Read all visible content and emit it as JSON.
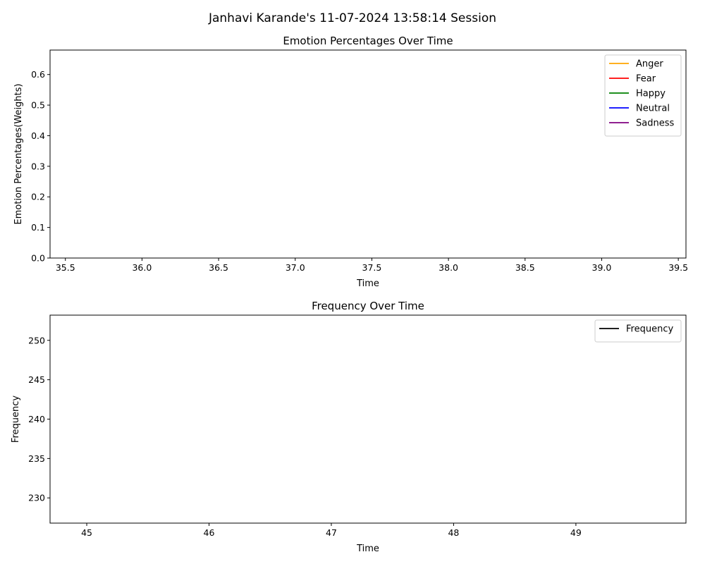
{
  "figure": {
    "suptitle": "Janhavi Karande's 11-07-2024 13:58:14 Session"
  },
  "chart_data": [
    {
      "type": "line",
      "title": "Emotion Percentages Over Time",
      "xlabel": "Time",
      "ylabel": "Emotion Percentages(Weights)",
      "xlim": [
        35.4,
        39.55
      ],
      "ylim": [
        0,
        0.68
      ],
      "xticks": [
        "35.5",
        "36.0",
        "36.5",
        "37.0",
        "37.5",
        "38.0",
        "38.5",
        "39.0",
        "39.5"
      ],
      "yticks": [
        "0.0",
        "0.1",
        "0.2",
        "0.3",
        "0.4",
        "0.5",
        "0.6"
      ],
      "legend_position": "top-right",
      "grid": false,
      "series": [
        {
          "name": "Anger",
          "color": "#FFA500",
          "x": [],
          "y": []
        },
        {
          "name": "Fear",
          "color": "#FF0000",
          "x": [],
          "y": []
        },
        {
          "name": "Happy",
          "color": "#008000",
          "x": [],
          "y": []
        },
        {
          "name": "Neutral",
          "color": "#0000FF",
          "x": [],
          "y": []
        },
        {
          "name": "Sadness",
          "color": "#800080",
          "x": [],
          "y": []
        }
      ]
    },
    {
      "type": "line",
      "title": "Frequency Over Time",
      "xlabel": "Time",
      "ylabel": "Frequency",
      "xlim": [
        44.7,
        49.9
      ],
      "ylim": [
        226.8,
        253.2
      ],
      "xticks": [
        "45",
        "46",
        "47",
        "48",
        "49"
      ],
      "yticks": [
        "230",
        "235",
        "240",
        "245",
        "250"
      ],
      "legend_position": "top-right",
      "grid": false,
      "series": [
        {
          "name": "Frequency",
          "color": "#000000",
          "x": [],
          "y": []
        }
      ]
    }
  ]
}
